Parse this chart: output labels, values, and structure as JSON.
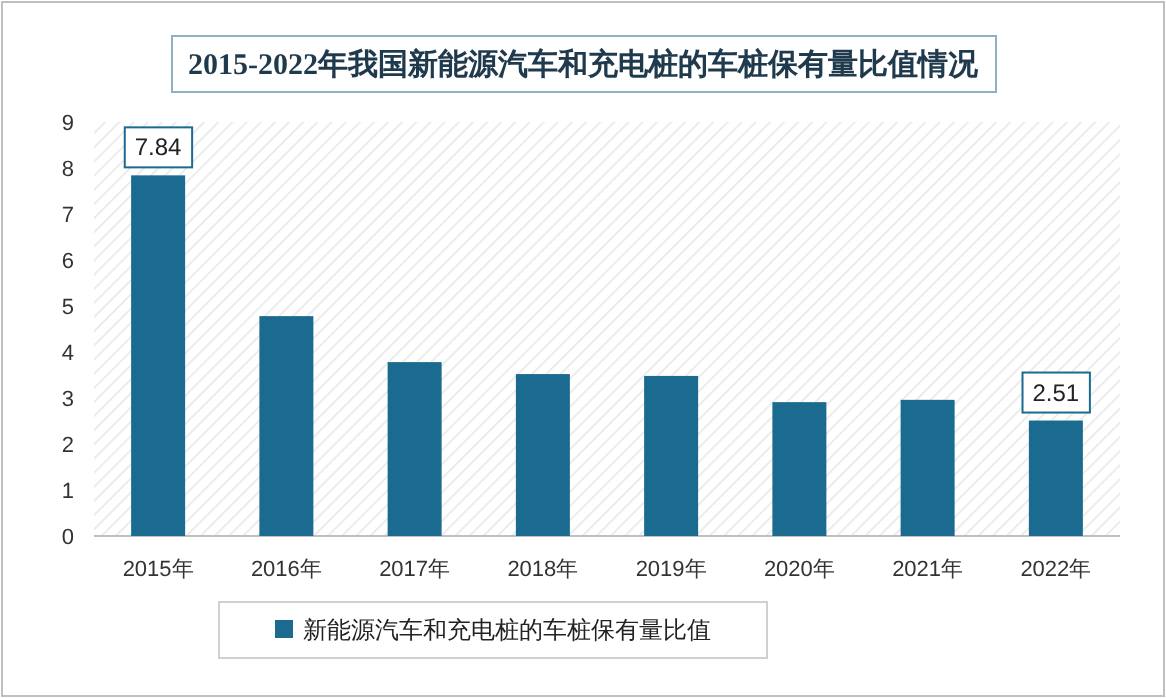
{
  "chart_data": {
    "type": "bar",
    "title": "2015-2022年我国新能源汽车和充电桩的车桩保有量比值情况",
    "categories": [
      "2015年",
      "2016年",
      "2017年",
      "2018年",
      "2019年",
      "2020年",
      "2021年",
      "2022年"
    ],
    "series": [
      {
        "name": "新能源汽车和充电桩的车桩保有量比值",
        "color": "#1b6a8f",
        "values": [
          7.84,
          4.78,
          3.78,
          3.52,
          3.48,
          2.91,
          2.96,
          2.51
        ],
        "value_labels": [
          "7.84",
          null,
          null,
          null,
          null,
          null,
          null,
          "2.51"
        ]
      }
    ],
    "ylim": [
      0,
      9
    ],
    "yticks": [
      0,
      1,
      2,
      3,
      4,
      5,
      6,
      7,
      8,
      9
    ],
    "grid": false,
    "legend": "bottom"
  }
}
